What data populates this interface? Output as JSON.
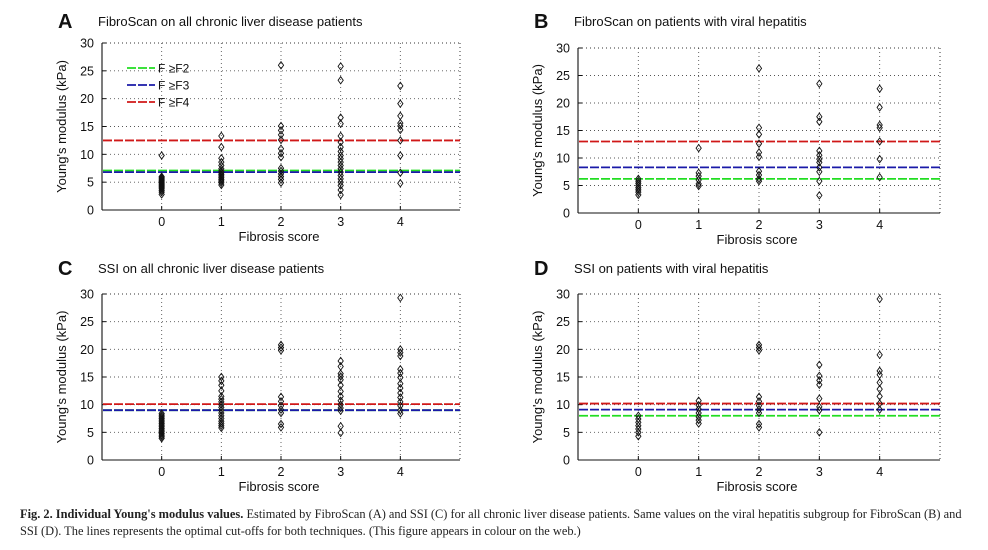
{
  "chart_data": [
    {
      "panel": "A",
      "type": "scatter",
      "title": "FibroScan on all chronic liver disease patients",
      "xlabel": "Fibrosis score",
      "ylabel": "Young's modulus (kPa)",
      "xlim": [
        -1,
        5
      ],
      "ylim": [
        0,
        30
      ],
      "xticks": [
        0,
        1,
        2,
        3,
        4
      ],
      "yticks": [
        0,
        5,
        10,
        15,
        20,
        25,
        30
      ],
      "grid": "dotted",
      "legend": {
        "placement": "top-left",
        "entries": [
          {
            "label": "F ≥F2",
            "color": "#22dd22"
          },
          {
            "label": "F ≥F3",
            "color": "#1a1aa8"
          },
          {
            "label": "F ≥F4",
            "color": "#d01818"
          }
        ]
      },
      "cutoffs": [
        {
          "name": "F ≥F2",
          "value": 7.1,
          "color": "#22dd22"
        },
        {
          "name": "F ≥F3",
          "value": 6.8,
          "color": "#1a1aa8"
        },
        {
          "name": "F ≥F4",
          "value": 12.5,
          "color": "#d01818"
        }
      ],
      "series": [
        {
          "x": 0,
          "values": [
            2.8,
            3.2,
            3.5,
            3.8,
            4.0,
            4.2,
            4.4,
            4.6,
            4.8,
            5.0,
            5.2,
            5.4,
            5.6,
            5.8,
            6.0,
            9.8
          ]
        },
        {
          "x": 1,
          "values": [
            4.5,
            4.9,
            5.2,
            5.5,
            5.8,
            6.1,
            6.4,
            6.7,
            7.0,
            7.4,
            8.0,
            8.6,
            9.3,
            11.3,
            13.3
          ]
        },
        {
          "x": 2,
          "values": [
            4.9,
            5.5,
            6.0,
            6.5,
            7.0,
            7.5,
            9.5,
            10.2,
            11.0,
            12.6,
            13.5,
            14.3,
            15.1,
            26.0
          ]
        },
        {
          "x": 3,
          "values": [
            2.7,
            3.6,
            4.4,
            5.0,
            5.6,
            6.2,
            6.8,
            7.4,
            8.0,
            8.6,
            9.2,
            9.8,
            10.5,
            11.3,
            12.2,
            13.3,
            15.5,
            16.6,
            23.3,
            25.8
          ]
        },
        {
          "x": 4,
          "values": [
            4.8,
            6.7,
            9.8,
            12.5,
            14.4,
            15.1,
            15.6,
            16.9,
            19.1,
            22.3
          ]
        }
      ]
    },
    {
      "panel": "B",
      "type": "scatter",
      "title": "FibroScan on patients with viral hepatitis",
      "xlabel": "Fibrosis score",
      "ylabel": "Young's modulus (kPa)",
      "xlim": [
        -1,
        5
      ],
      "ylim": [
        0,
        30
      ],
      "xticks": [
        0,
        1,
        2,
        3,
        4
      ],
      "yticks": [
        0,
        5,
        10,
        15,
        20,
        25,
        30
      ],
      "grid": "dotted",
      "cutoffs": [
        {
          "name": "F ≥F2",
          "value": 6.2,
          "color": "#22dd22"
        },
        {
          "name": "F ≥F3",
          "value": 8.3,
          "color": "#1a1aa8"
        },
        {
          "name": "F ≥F4",
          "value": 13.0,
          "color": "#d01818"
        }
      ],
      "series": [
        {
          "x": 0,
          "values": [
            3.3,
            3.8,
            4.2,
            4.6,
            5.0,
            5.4,
            5.8,
            6.2
          ]
        },
        {
          "x": 1,
          "values": [
            4.9,
            5.3,
            6.0,
            6.7,
            7.3,
            11.8
          ]
        },
        {
          "x": 2,
          "values": [
            5.8,
            6.2,
            6.9,
            7.6,
            10.2,
            11.0,
            12.6,
            14.3,
            15.5,
            26.3
          ]
        },
        {
          "x": 3,
          "values": [
            3.2,
            5.8,
            7.5,
            8.3,
            9.2,
            9.8,
            10.5,
            11.3,
            16.6,
            17.5,
            23.5
          ]
        },
        {
          "x": 4,
          "values": [
            6.5,
            9.8,
            13.0,
            15.5,
            16.0,
            19.2,
            22.6
          ]
        }
      ]
    },
    {
      "panel": "C",
      "type": "scatter",
      "title": "SSI on all chronic liver disease patients",
      "xlabel": "Fibrosis score",
      "ylabel": "Young's modulus (kPa)",
      "xlim": [
        -1,
        5
      ],
      "ylim": [
        0,
        30
      ],
      "xticks": [
        0,
        1,
        2,
        3,
        4
      ],
      "yticks": [
        0,
        5,
        10,
        15,
        20,
        25,
        30
      ],
      "grid": "dotted",
      "cutoffs": [
        {
          "name": "F ≥F2",
          "value": 9.0,
          "color": "#22dd22"
        },
        {
          "name": "F ≥F3",
          "value": 9.0,
          "color": "#1a1aa8"
        },
        {
          "name": "F ≥F4",
          "value": 10.1,
          "color": "#d01818"
        }
      ],
      "series": [
        {
          "x": 0,
          "values": [
            3.9,
            4.2,
            4.5,
            4.8,
            5.1,
            5.4,
            5.7,
            6.0,
            6.3,
            6.6,
            6.9,
            7.2,
            7.5,
            7.8,
            8.1,
            8.4
          ]
        },
        {
          "x": 1,
          "values": [
            5.8,
            6.2,
            6.6,
            7.0,
            7.5,
            8.0,
            8.5,
            9.0,
            9.5,
            10.0,
            10.5,
            11.0,
            11.5,
            12.5,
            13.5,
            14.3,
            15.0
          ]
        },
        {
          "x": 2,
          "values": [
            5.9,
            6.5,
            8.5,
            9.1,
            9.8,
            10.6,
            11.4,
            19.8,
            20.3,
            20.8
          ]
        },
        {
          "x": 3,
          "values": [
            4.9,
            6.1,
            8.9,
            9.4,
            10.0,
            10.7,
            11.5,
            12.4,
            13.5,
            14.5,
            15.1,
            15.6,
            16.9,
            17.9
          ]
        },
        {
          "x": 4,
          "values": [
            8.4,
            9.0,
            9.8,
            10.5,
            11.3,
            12.1,
            13.0,
            13.8,
            14.9,
            15.7,
            16.4,
            18.8,
            19.4,
            20.0,
            29.3
          ]
        }
      ]
    },
    {
      "panel": "D",
      "type": "scatter",
      "title": "SSI on patients with viral hepatitis",
      "xlabel": "Fibrosis score",
      "ylabel": "Young's modulus (kPa)",
      "xlim": [
        -1,
        5
      ],
      "ylim": [
        0,
        30
      ],
      "xticks": [
        0,
        1,
        2,
        3,
        4
      ],
      "yticks": [
        0,
        5,
        10,
        15,
        20,
        25,
        30
      ],
      "grid": "dotted",
      "cutoffs": [
        {
          "name": "F ≥F2",
          "value": 8.0,
          "color": "#22dd22"
        },
        {
          "name": "F ≥F3",
          "value": 9.1,
          "color": "#1a1aa8"
        },
        {
          "name": "F ≥F4",
          "value": 10.2,
          "color": "#d01818"
        }
      ],
      "series": [
        {
          "x": 0,
          "values": [
            4.3,
            5.0,
            5.6,
            6.2,
            6.8,
            7.4,
            8.0
          ]
        },
        {
          "x": 1,
          "values": [
            6.6,
            7.2,
            7.8,
            8.5,
            9.2,
            9.9,
            10.7
          ]
        },
        {
          "x": 2,
          "values": [
            5.9,
            6.5,
            8.5,
            9.1,
            9.8,
            10.6,
            11.4,
            19.8,
            20.3,
            20.8
          ]
        },
        {
          "x": 3,
          "values": [
            5.0,
            9.0,
            9.6,
            11.1,
            13.6,
            14.4,
            15.2,
            17.2
          ]
        },
        {
          "x": 4,
          "values": [
            9.1,
            10.2,
            11.5,
            12.8,
            14.0,
            15.4,
            16.1,
            19.0,
            29.1
          ]
        }
      ]
    }
  ],
  "caption": {
    "lead": "Fig. 2. Individual Young's modulus values.",
    "text": "Estimated by FibroScan (A) and SSI (C) for all chronic liver disease patients. Same values on the viral hepatitis subgroup for FibroScan (B) and SSI (D). The lines represents the optimal cut-offs for both techniques. (This figure appears in colour on the web.)"
  }
}
